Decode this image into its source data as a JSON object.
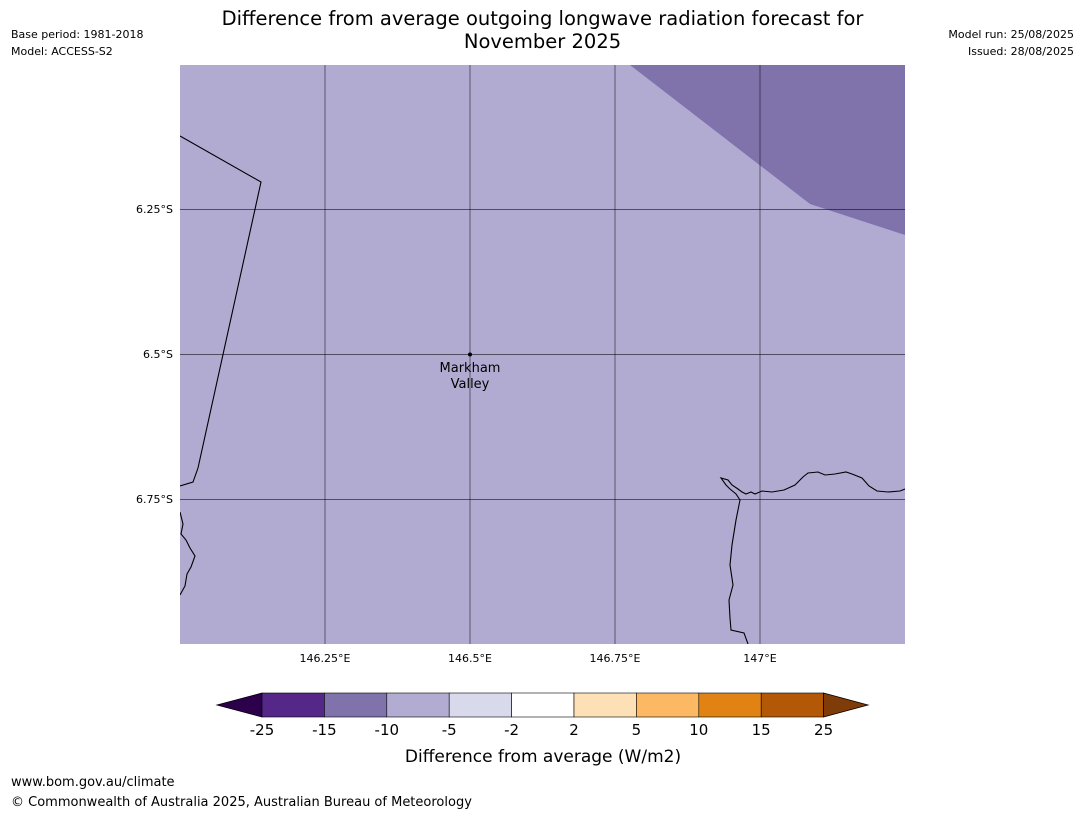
{
  "title_line1": "Difference from average outgoing longwave radiation forecast for",
  "title_line2": "November 2025",
  "base_period": "Base period: 1981-2018",
  "model": "Model: ACCESS-S2",
  "model_run": "Model run: 25/08/2025",
  "issued": "Issued: 28/08/2025",
  "map": {
    "background_color": "#b1abd2",
    "anomaly_region_color": "#8073ac",
    "lat_ticks": [
      "6.25°S",
      "6.5°S",
      "6.75°S"
    ],
    "lon_ticks": [
      "146.25°E",
      "146.5°E",
      "146.75°E",
      "147°E"
    ],
    "place": {
      "name_line1": "Markham",
      "name_line2": "Valley"
    }
  },
  "colorbar": {
    "title": "Difference from average (W/m2)",
    "tick_labels": [
      "-25",
      "-15",
      "-10",
      "-5",
      "-2",
      "2",
      "5",
      "10",
      "15",
      "25"
    ],
    "colors": [
      "#542788",
      "#8073ac",
      "#b2abd2",
      "#d8daeb",
      "#ffffff",
      "#fee0b6",
      "#fdb863",
      "#e08214",
      "#b35806"
    ],
    "under_color": "#2d004b",
    "over_color": "#7f3b08"
  },
  "footer": {
    "url": "www.bom.gov.au/climate",
    "copyright": "© Commonwealth of Australia 2025, Australian Bureau of Meteorology"
  }
}
